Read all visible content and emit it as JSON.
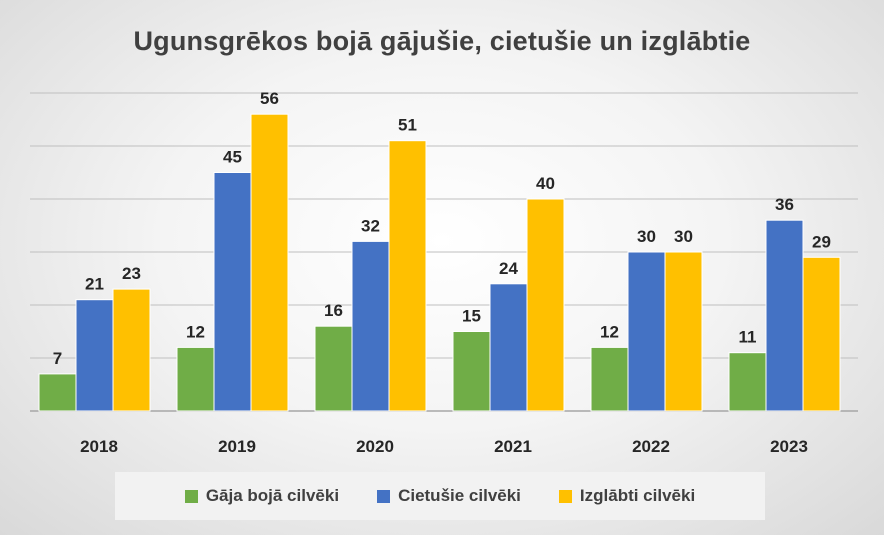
{
  "chart_data": {
    "type": "bar",
    "title": "Ugunsgrēkos bojā gājušie, cietušie un izglābtie",
    "categories": [
      "2018",
      "2019",
      "2020",
      "2021",
      "2022",
      "2023"
    ],
    "series": [
      {
        "name": "Gāja bojā cilvēki",
        "color": "#70ad47",
        "values": [
          7,
          12,
          16,
          15,
          12,
          11
        ]
      },
      {
        "name": "Cietušie cilvēki",
        "color": "#4472c4",
        "values": [
          21,
          45,
          32,
          24,
          30,
          36
        ]
      },
      {
        "name": "Izglābti cilvēki",
        "color": "#ffc000",
        "values": [
          23,
          56,
          51,
          40,
          30,
          29
        ]
      }
    ],
    "ylim": [
      0,
      60
    ],
    "grid": true,
    "data_labels": true,
    "legend_position": "bottom"
  }
}
